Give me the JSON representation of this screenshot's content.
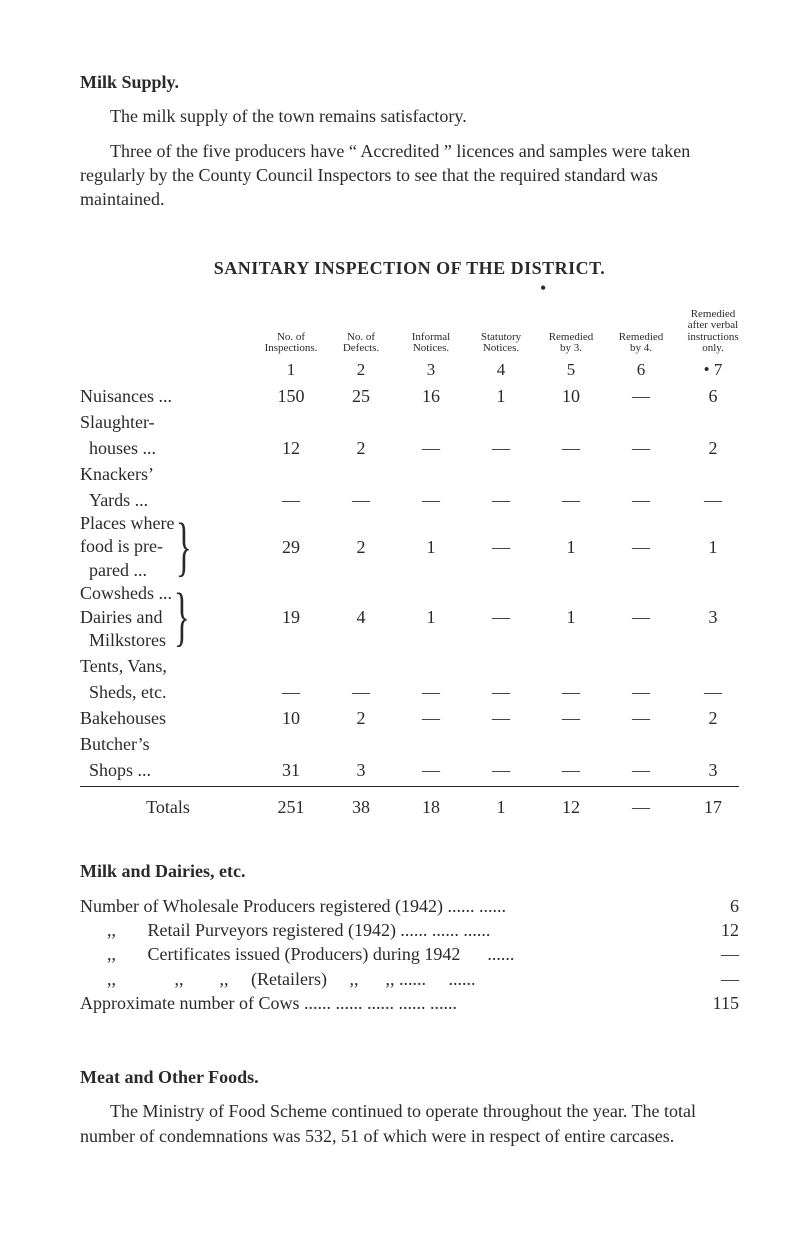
{
  "milk_supply": {
    "heading": "Milk Supply.",
    "p1": "The milk supply of the town remains satisfactory.",
    "p2": "Three of the five producers have “ Accredited ” licences and samples were taken regularly by the County Council Inspectors to see that the required standard was maintained."
  },
  "inspection": {
    "title": "SANITARY INSPECTION OF THE DISTRICT.",
    "columns": [
      {
        "top": "No. of",
        "bot": "Inspections.",
        "idx": "1"
      },
      {
        "top": "No. of",
        "bot": "Defects.",
        "idx": "2"
      },
      {
        "top": "Informal",
        "bot": "Notices.",
        "idx": "3"
      },
      {
        "top": "Statutory",
        "bot": "Notices.",
        "idx": "4"
      },
      {
        "top": "Remedied",
        "bot": "by 3.",
        "idx": "5"
      },
      {
        "top": "Remedied",
        "bot": "by 4.",
        "idx": "6"
      },
      {
        "top": "Remedied",
        "mid": "after verbal",
        "bot": "instructions only.",
        "idx": "• 7"
      }
    ],
    "rows": [
      {
        "label": "Nuisances ...",
        "v": [
          "150",
          "25",
          "16",
          "1",
          "10",
          "—",
          "6"
        ]
      },
      {
        "label": "Slaughter-",
        "sub": true
      },
      {
        "label": "  houses  ...",
        "v": [
          "12",
          "2",
          "—",
          "—",
          "—",
          "—",
          "2"
        ]
      },
      {
        "label": "Knackers’",
        "sub": true
      },
      {
        "label": "  Yards  ...",
        "v": [
          "—",
          "—",
          "—",
          "—",
          "—",
          "—",
          "—"
        ]
      },
      {
        "label_group": [
          "Places where",
          "food is pre-",
          "  pared   ..."
        ],
        "brace": true,
        "v": [
          "29",
          "2",
          "1",
          "—",
          "1",
          "—",
          "1"
        ]
      },
      {
        "label_group": [
          "Cowsheds ...",
          "Dairies   and",
          "  Milkstores"
        ],
        "brace": true,
        "v": [
          "19",
          "4",
          "1",
          "—",
          "1",
          "—",
          "3"
        ]
      },
      {
        "label": "Tents, Vans,",
        "sub": true
      },
      {
        "label": "  Sheds, etc.",
        "v": [
          "—",
          "—",
          "—",
          "—",
          "—",
          "—",
          "—"
        ]
      },
      {
        "label": "Bakehouses",
        "v": [
          "10",
          "2",
          "—",
          "—",
          "—",
          "—",
          "2"
        ]
      },
      {
        "label": "Butcher’s",
        "sub": true
      },
      {
        "label": "  Shops   ...",
        "v": [
          "31",
          "3",
          "—",
          "—",
          "—",
          "—",
          "3"
        ]
      }
    ],
    "totals": {
      "label": "Totals",
      "v": [
        "251",
        "38",
        "18",
        "1",
        "12",
        "—",
        "17"
      ]
    }
  },
  "milk_dairies": {
    "heading": "Milk and Dairies, etc.",
    "lines": [
      {
        "text": "Number of Wholesale Producers registered (1942)   ......   ......",
        "val": "6"
      },
      {
        "text": "      ,,       Retail Purveyors registered (1942) ......   ......   ......",
        "val": "12"
      },
      {
        "text": "      ,,       Certificates issued (Producers) during 1942      ......",
        "val": "—"
      },
      {
        "text": "      ,,             ,,        ,,     (Retailers)     ,,      ,, ......     ......",
        "val": "—"
      },
      {
        "text": "Approximate number of Cows   ......   ......   ......   ......   ......",
        "val": "115"
      }
    ]
  },
  "meat": {
    "heading": "Meat and Other Foods.",
    "p1": "The Ministry of Food Scheme continued to operate throughout the year.  The total number of condemnations was 532, 51 of which were in respect of entire carcases."
  }
}
